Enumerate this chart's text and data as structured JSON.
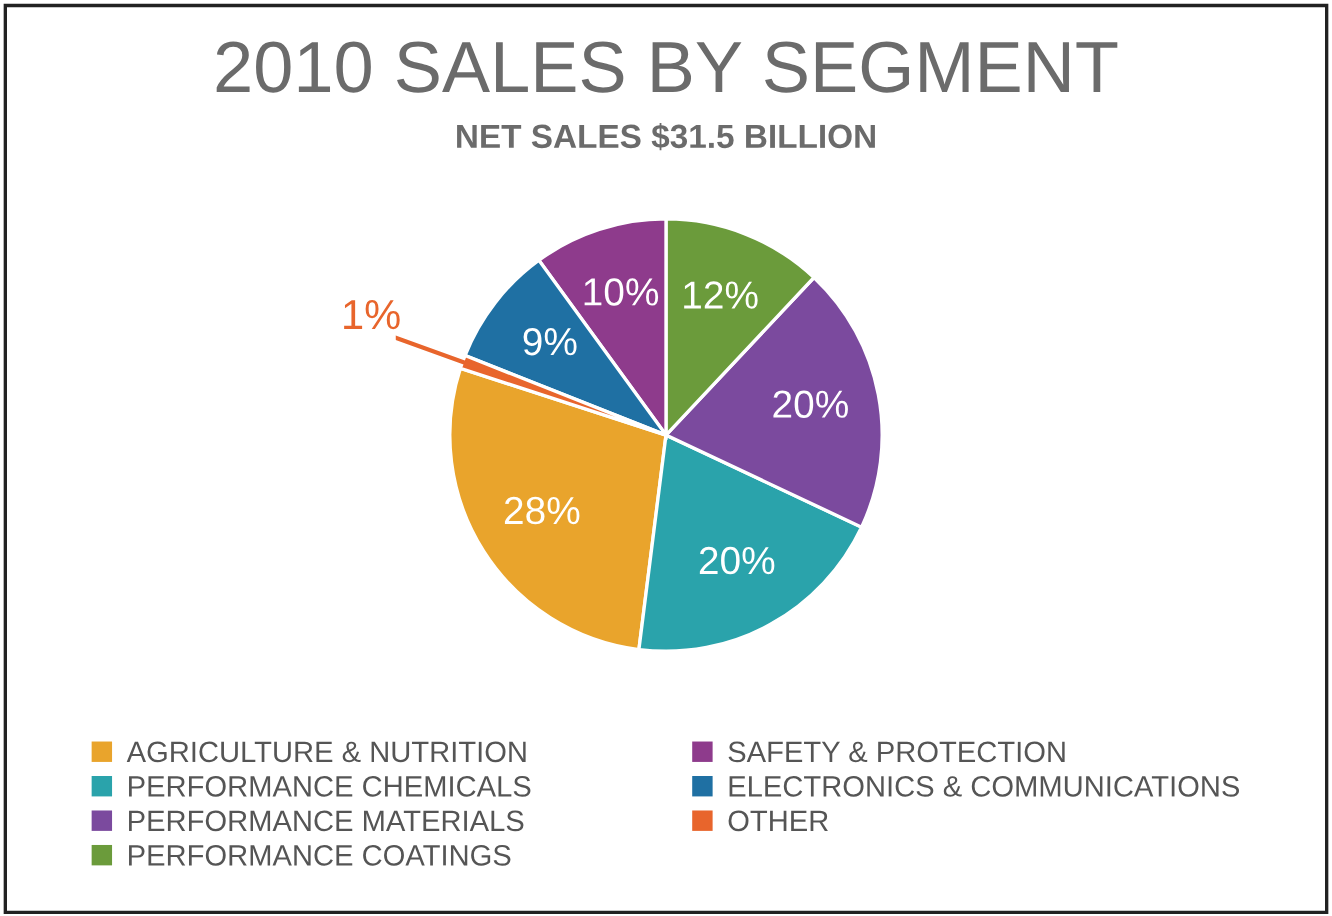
{
  "chart_data": {
    "type": "pie",
    "title": "2010 SALES BY SEGMENT",
    "subtitle": "NET SALES $31.5 BILLION",
    "categories": [
      "AGRICULTURE & NUTRITION",
      "PERFORMANCE CHEMICALS",
      "PERFORMANCE MATERIALS",
      "PERFORMANCE COATINGS",
      "SAFETY & PROTECTION",
      "ELECTRONICS & COMMUNICATIONS",
      "OTHER"
    ],
    "values": [
      28,
      20,
      20,
      12,
      10,
      9,
      1
    ],
    "value_labels": [
      "28%",
      "20%",
      "20%",
      "12%",
      "10%",
      "9%",
      "1%"
    ],
    "colors": [
      "#e9a42c",
      "#2aa3ab",
      "#7b4a9e",
      "#6b9b3b",
      "#8e3b8c",
      "#1f70a3",
      "#e8652c"
    ],
    "legend": "bottom"
  }
}
